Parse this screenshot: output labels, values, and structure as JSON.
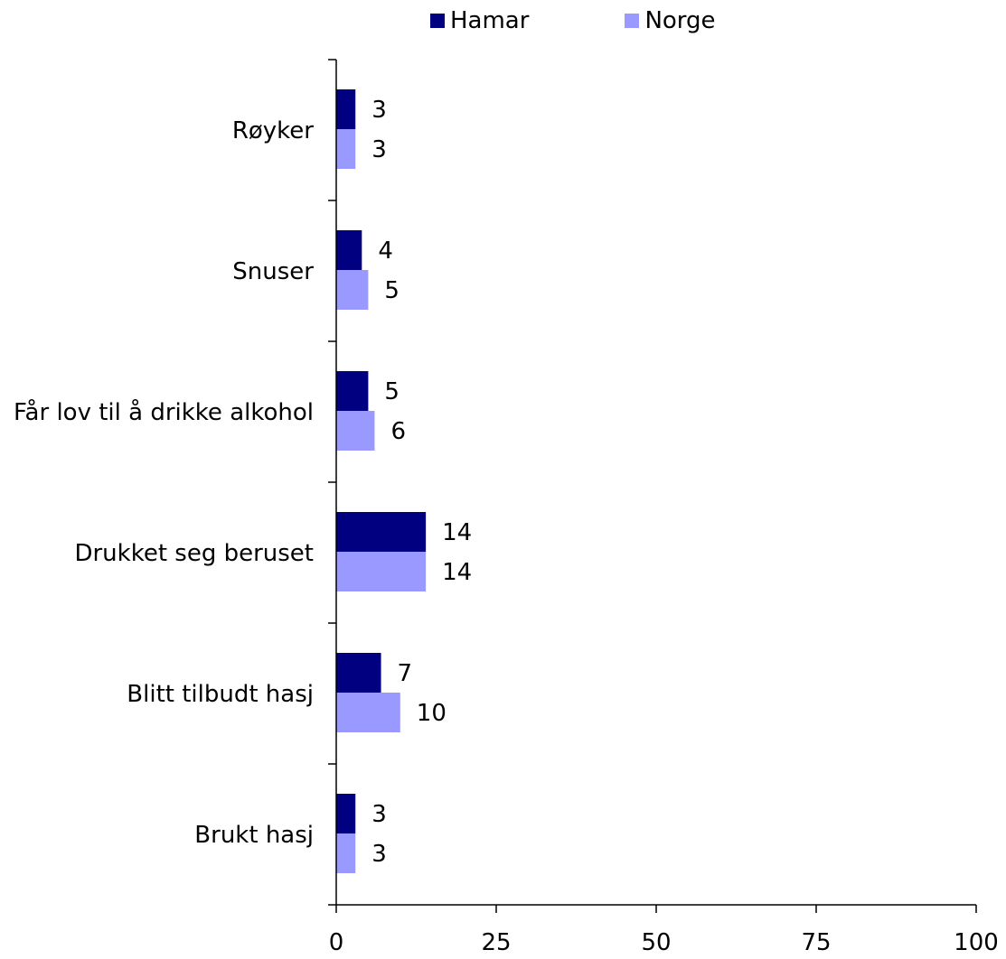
{
  "chart_data": {
    "type": "bar",
    "orientation": "horizontal",
    "categories": [
      "Røyker",
      "Snuser",
      "Får lov til å drikke alkohol",
      "Drukket seg beruset",
      "Blitt tilbudt hasj",
      "Brukt hasj"
    ],
    "series": [
      {
        "name": "Hamar",
        "color": "#000080",
        "values": [
          3,
          4,
          5,
          14,
          7,
          3
        ]
      },
      {
        "name": "Norge",
        "color": "#9999FF",
        "values": [
          3,
          5,
          6,
          14,
          10,
          3
        ]
      }
    ],
    "xlim": [
      0,
      100
    ],
    "xticks": [
      "0",
      "25",
      "50",
      "75",
      "100"
    ],
    "title": "",
    "xlabel": "",
    "ylabel": "",
    "legend_position": "top",
    "grid": false,
    "data_labels": true
  }
}
